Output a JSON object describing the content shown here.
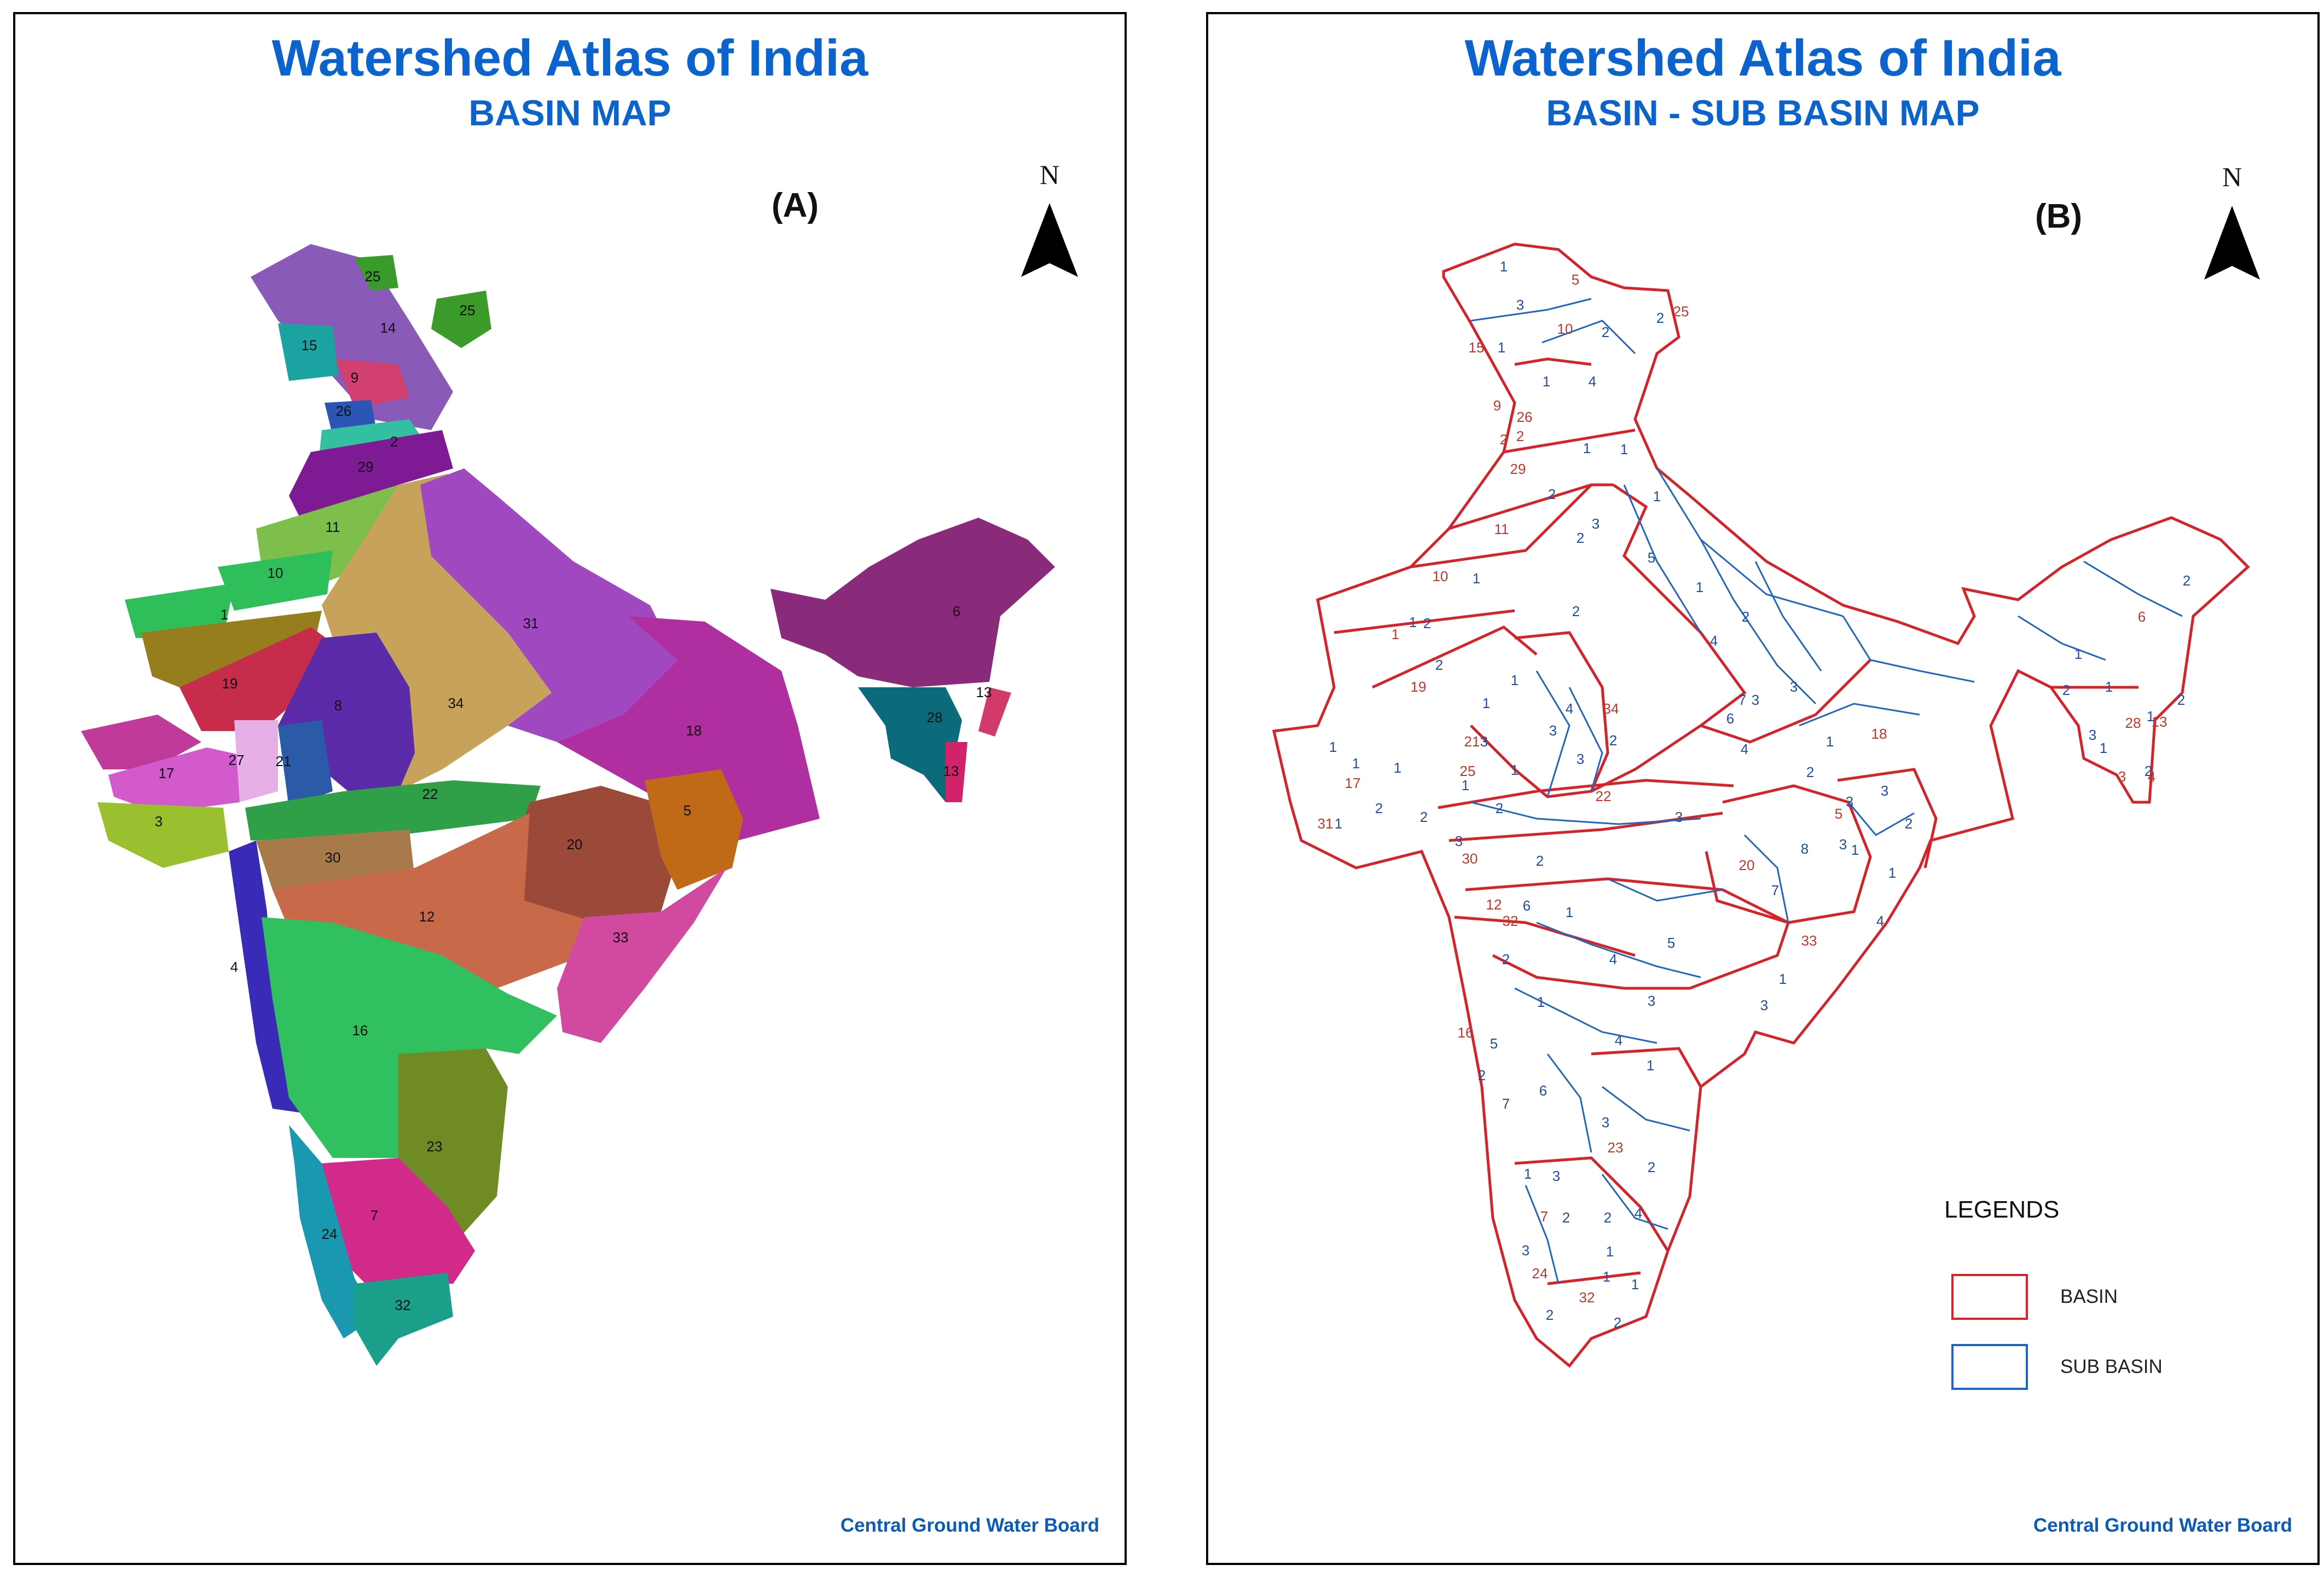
{
  "panel_a": {
    "title": "Watershed Atlas of India",
    "subtitle": "BASIN MAP",
    "tag": "(A)",
    "north": "N",
    "credit": "Central Ground Water Board",
    "basin_labels": [
      "25",
      "25",
      "14",
      "15",
      "9",
      "26",
      "2",
      "29",
      "11",
      "10",
      "1",
      "31",
      "6",
      "19",
      "8",
      "34",
      "13",
      "18",
      "28",
      "13",
      "17",
      "27",
      "21",
      "22",
      "3",
      "5",
      "20",
      "30",
      "12",
      "33",
      "4",
      "16",
      "23",
      "7",
      "24",
      "32"
    ]
  },
  "panel_b": {
    "title": "Watershed Atlas of India",
    "subtitle": "BASIN - SUB BASIN MAP",
    "tag": "(B)",
    "north": "N",
    "credit": "Central Ground Water Board",
    "legend": {
      "title": "LEGENDS",
      "items": [
        {
          "label": "BASIN",
          "color": "#d6232a"
        },
        {
          "label": "SUB BASIN",
          "color": "#1f66c2"
        }
      ]
    },
    "basin_labels": [
      "5",
      "25",
      "10",
      "15",
      "9",
      "26",
      "2",
      "29",
      "11",
      "10",
      "1",
      "19",
      "21",
      "25",
      "17",
      "31",
      "34",
      "22",
      "30",
      "32",
      "16",
      "18",
      "5",
      "20",
      "33",
      "23",
      "7",
      "24",
      "32",
      "6",
      "28",
      "13",
      "12",
      "3",
      "4",
      "2"
    ],
    "subbasin_labels": [
      "1",
      "3",
      "2",
      "2",
      "1",
      "1",
      "4",
      "1",
      "1",
      "2",
      "1",
      "3",
      "5",
      "2",
      "2",
      "2",
      "4",
      "1",
      "1",
      "2",
      "1",
      "2",
      "1",
      "4",
      "3",
      "7",
      "6",
      "3",
      "4",
      "3",
      "1",
      "2",
      "3",
      "1",
      "1",
      "2",
      "1",
      "2",
      "2",
      "1",
      "1",
      "2",
      "2",
      "3",
      "3",
      "1",
      "1",
      "2",
      "3",
      "7",
      "8",
      "3",
      "1",
      "2",
      "6",
      "2",
      "1",
      "4",
      "5",
      "3",
      "4",
      "1",
      "3",
      "2",
      "5",
      "4",
      "2",
      "1",
      "7",
      "6",
      "3",
      "2",
      "1",
      "3",
      "1",
      "2",
      "2",
      "1",
      "4",
      "3",
      "1",
      "2",
      "2",
      "1",
      "3",
      "2",
      "1",
      "1",
      "1",
      "2",
      "1",
      "1",
      "3",
      "3"
    ]
  }
}
